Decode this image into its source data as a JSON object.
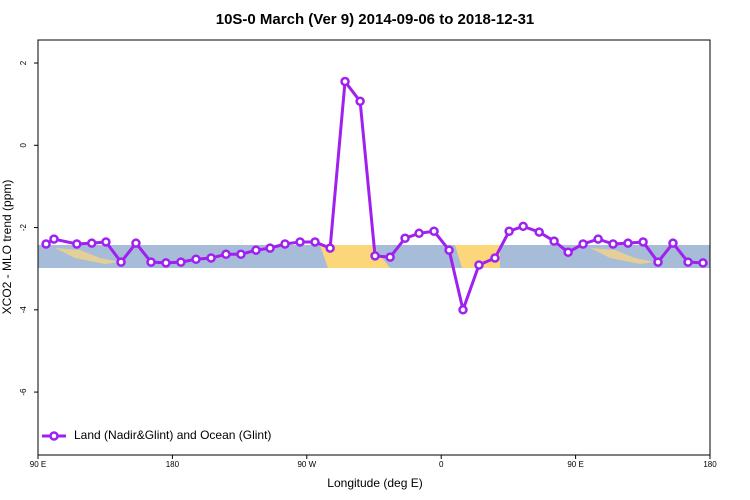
{
  "chart_data": {
    "type": "line",
    "title": "10S-0 March (Ver 9)   2014-09-06 to 2018-12-31",
    "x_label": "Longitude (deg E)",
    "y_label": "XCO2 - MLO trend (ppm)",
    "xlim": [
      90,
      540
    ],
    "xticks": [
      {
        "value": 90,
        "label": "90 E"
      },
      180,
      {
        "value": 270,
        "label": "90 W"
      },
      {
        "value": 360,
        "label": "0"
      },
      {
        "value": 450,
        "label": "90 E"
      },
      {
        "value": 540,
        "label": "180"
      }
    ],
    "ylim": [
      -7.53,
      2.56
    ],
    "yticks": [
      -6,
      -4,
      -2,
      0,
      2
    ],
    "legend": "bottom-left",
    "series": [
      {
        "name": "Land (Nadir&Glint) and Ocean (Glint)",
        "color": "#a020f0",
        "x": [
          95.4,
          100.7,
          116,
          126,
          135.5,
          145.6,
          155.6,
          165.7,
          175.7,
          185.7,
          195.8,
          205.9,
          215.9,
          225.9,
          236,
          245.4,
          255.4,
          265.5,
          275.5,
          285.6,
          295.6,
          305.7,
          315.7,
          325.8,
          335.8,
          345.2,
          355.2,
          365.3,
          374.6,
          385.3,
          396,
          405.5,
          414.9,
          425.6,
          435.6,
          445,
          455,
          465.1,
          475.1,
          485.1,
          495.2,
          505.2,
          515.2,
          525.3,
          535.3
        ],
        "values": [
          -2.4,
          -2.28,
          -2.4,
          -2.38,
          -2.35,
          -2.84,
          -2.38,
          -2.84,
          -2.86,
          -2.84,
          -2.77,
          -2.74,
          -2.65,
          -2.65,
          -2.55,
          -2.5,
          -2.4,
          -2.35,
          -2.35,
          -2.5,
          1.55,
          1.07,
          -2.69,
          -2.72,
          -2.26,
          -2.14,
          -2.09,
          -2.55,
          -4.0,
          -2.91,
          -2.74,
          -2.09,
          -1.97,
          -2.11,
          -2.33,
          -2.6,
          -2.4,
          -2.28,
          -2.4,
          -2.38,
          -2.35,
          -2.84,
          -2.38,
          -2.84,
          -2.86
        ]
      }
    ]
  }
}
